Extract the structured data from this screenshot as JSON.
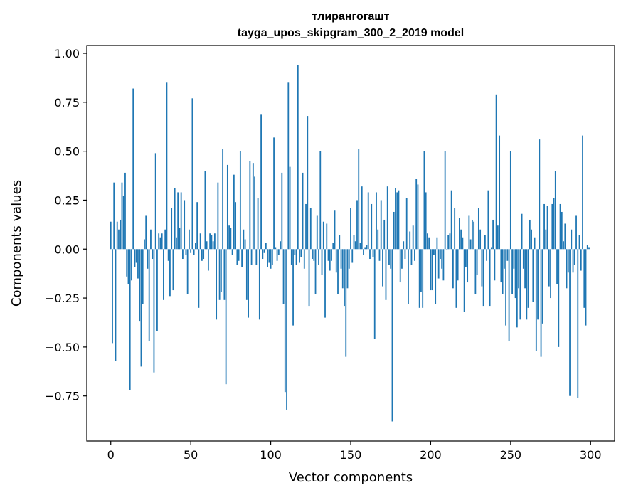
{
  "chart_data": {
    "type": "bar",
    "title": "тлирангогашт",
    "subtitle": "tayga_upos_skipgram_300_2_2019 model",
    "xlabel": "Vector components",
    "ylabel": "Components values",
    "xlim": [
      -15,
      315
    ],
    "ylim": [
      -0.98,
      1.04
    ],
    "xticks": [
      0,
      50,
      100,
      150,
      200,
      250,
      300
    ],
    "yticks": [
      -0.75,
      -0.5,
      -0.25,
      0.0,
      0.25,
      0.5,
      0.75,
      1.0
    ],
    "xtick_labels": [
      "0",
      "50",
      "100",
      "150",
      "200",
      "250",
      "300"
    ],
    "ytick_labels": [
      "−0.75",
      "−0.50",
      "−0.25",
      "0.00",
      "0.25",
      "0.50",
      "0.75",
      "1.00"
    ],
    "bar_color": "#1f77b4",
    "grid": false,
    "x": [
      0,
      1,
      2,
      3,
      4,
      5,
      6,
      7,
      8,
      9,
      10,
      11,
      12,
      13,
      14,
      15,
      16,
      17,
      18,
      19,
      20,
      21,
      22,
      23,
      24,
      25,
      26,
      27,
      28,
      29,
      30,
      31,
      32,
      33,
      34,
      35,
      36,
      37,
      38,
      39,
      40,
      41,
      42,
      43,
      44,
      45,
      46,
      47,
      48,
      49,
      50,
      51,
      52,
      53,
      54,
      55,
      56,
      57,
      58,
      59,
      60,
      61,
      62,
      63,
      64,
      65,
      66,
      67,
      68,
      69,
      70,
      71,
      72,
      73,
      74,
      75,
      76,
      77,
      78,
      79,
      80,
      81,
      82,
      83,
      84,
      85,
      86,
      87,
      88,
      89,
      90,
      91,
      92,
      93,
      94,
      95,
      96,
      97,
      98,
      99,
      100,
      101,
      102,
      103,
      104,
      105,
      106,
      107,
      108,
      109,
      110,
      111,
      112,
      113,
      114,
      115,
      116,
      117,
      118,
      119,
      120,
      121,
      122,
      123,
      124,
      125,
      126,
      127,
      128,
      129,
      130,
      131,
      132,
      133,
      134,
      135,
      136,
      137,
      138,
      139,
      140,
      141,
      142,
      143,
      144,
      145,
      146,
      147,
      148,
      149,
      150,
      151,
      152,
      153,
      154,
      155,
      156,
      157,
      158,
      159,
      160,
      161,
      162,
      163,
      164,
      165,
      166,
      167,
      168,
      169,
      170,
      171,
      172,
      173,
      174,
      175,
      176,
      177,
      178,
      179,
      180,
      181,
      182,
      183,
      184,
      185,
      186,
      187,
      188,
      189,
      190,
      191,
      192,
      193,
      194,
      195,
      196,
      197,
      198,
      199,
      200,
      201,
      202,
      203,
      204,
      205,
      206,
      207,
      208,
      209,
      210,
      211,
      212,
      213,
      214,
      215,
      216,
      217,
      218,
      219,
      220,
      221,
      222,
      223,
      224,
      225,
      226,
      227,
      228,
      229,
      230,
      231,
      232,
      233,
      234,
      235,
      236,
      237,
      238,
      239,
      240,
      241,
      242,
      243,
      244,
      245,
      246,
      247,
      248,
      249,
      250,
      251,
      252,
      253,
      254,
      255,
      256,
      257,
      258,
      259,
      260,
      261,
      262,
      263,
      264,
      265,
      266,
      267,
      268,
      269,
      270,
      271,
      272,
      273,
      274,
      275,
      276,
      277,
      278,
      279,
      280,
      281,
      282,
      283,
      284,
      285,
      286,
      287,
      288,
      289,
      290,
      291,
      292,
      293,
      294,
      295,
      296,
      297,
      298,
      299
    ],
    "values": [
      0.14,
      -0.48,
      0.34,
      -0.57,
      0.14,
      0.1,
      0.15,
      0.34,
      0.27,
      0.39,
      -0.14,
      -0.18,
      -0.72,
      -0.16,
      0.82,
      -0.09,
      -0.07,
      -0.15,
      -0.37,
      -0.6,
      -0.28,
      0.05,
      0.17,
      -0.1,
      -0.47,
      0.1,
      -0.05,
      -0.63,
      0.49,
      -0.42,
      0.08,
      0.06,
      0.08,
      -0.26,
      0.1,
      0.85,
      -0.06,
      -0.24,
      0.21,
      -0.21,
      0.31,
      0.06,
      0.29,
      0.11,
      0.29,
      -0.05,
      0.25,
      -0.03,
      -0.23,
      0.1,
      -0.02,
      0.77,
      -0.03,
      0.03,
      0.24,
      -0.3,
      0.08,
      -0.06,
      -0.05,
      0.4,
      0.04,
      -0.11,
      0.08,
      0.07,
      0.04,
      0.08,
      -0.36,
      0.34,
      -0.26,
      -0.22,
      0.51,
      -0.26,
      -0.69,
      0.43,
      0.12,
      0.11,
      -0.03,
      0.38,
      0.24,
      -0.08,
      -0.06,
      0.5,
      -0.09,
      0.1,
      0.05,
      -0.26,
      -0.35,
      0.45,
      -0.08,
      0.44,
      0.37,
      -0.08,
      0.26,
      -0.36,
      0.69,
      -0.05,
      -0.02,
      0.03,
      -0.09,
      -0.07,
      -0.1,
      -0.08,
      0.57,
      0.01,
      -0.06,
      -0.03,
      0.04,
      0.39,
      -0.28,
      -0.73,
      -0.82,
      0.85,
      0.42,
      -0.08,
      -0.39,
      -0.03,
      -0.08,
      0.94,
      -0.07,
      -0.04,
      0.39,
      -0.1,
      0.23,
      0.68,
      -0.29,
      0.21,
      -0.05,
      -0.06,
      -0.23,
      0.17,
      -0.08,
      0.5,
      -0.13,
      0.14,
      -0.35,
      0.13,
      -0.06,
      -0.11,
      -0.06,
      0.03,
      0.2,
      -0.12,
      -0.23,
      0.07,
      -0.1,
      -0.2,
      -0.29,
      -0.55,
      -0.2,
      -0.1,
      0.21,
      -0.07,
      0.07,
      0.04,
      0.25,
      0.51,
      0.03,
      0.32,
      -0.03,
      0.01,
      0.02,
      0.29,
      -0.05,
      0.23,
      -0.04,
      -0.46,
      0.29,
      0.1,
      -0.06,
      0.25,
      -0.19,
      0.15,
      -0.26,
      0.32,
      -0.08,
      -0.1,
      -0.88,
      0.19,
      0.31,
      0.29,
      0.3,
      -0.17,
      -0.1,
      0.04,
      -0.05,
      0.26,
      -0.28,
      0.09,
      -0.08,
      0.12,
      -0.06,
      0.36,
      0.33,
      -0.3,
      -0.22,
      -0.3,
      0.5,
      0.29,
      0.08,
      0.06,
      -0.21,
      -0.21,
      -0.03,
      -0.28,
      0.06,
      -0.15,
      -0.05,
      -0.1,
      -0.16,
      0.5,
      0.0,
      0.07,
      0.08,
      0.3,
      -0.2,
      0.21,
      -0.3,
      -0.16,
      0.16,
      0.1,
      0.06,
      -0.32,
      -0.09,
      -0.17,
      0.17,
      0.05,
      0.15,
      0.14,
      -0.23,
      -0.13,
      0.21,
      0.1,
      -0.19,
      -0.29,
      0.07,
      -0.06,
      0.3,
      -0.29,
      0.01,
      0.15,
      -0.16,
      0.79,
      0.12,
      0.58,
      -0.17,
      -0.23,
      -0.1,
      -0.39,
      -0.06,
      -0.47,
      0.5,
      -0.23,
      -0.1,
      -0.25,
      -0.4,
      -0.2,
      -0.36,
      0.18,
      -0.1,
      -0.2,
      -0.36,
      -0.3,
      0.15,
      0.1,
      -0.27,
      0.06,
      -0.52,
      -0.36,
      0.56,
      -0.55,
      -0.38,
      0.23,
      0.1,
      0.22,
      -0.19,
      -0.25,
      0.23,
      0.26,
      0.4,
      -0.18,
      -0.5,
      0.23,
      0.19,
      0.04,
      0.13,
      -0.2,
      -0.12,
      -0.75,
      0.1,
      -0.12,
      -0.08,
      0.17,
      -0.76,
      0.07,
      -0.11,
      0.58,
      -0.3,
      -0.39,
      0.02,
      0.01
    ]
  }
}
